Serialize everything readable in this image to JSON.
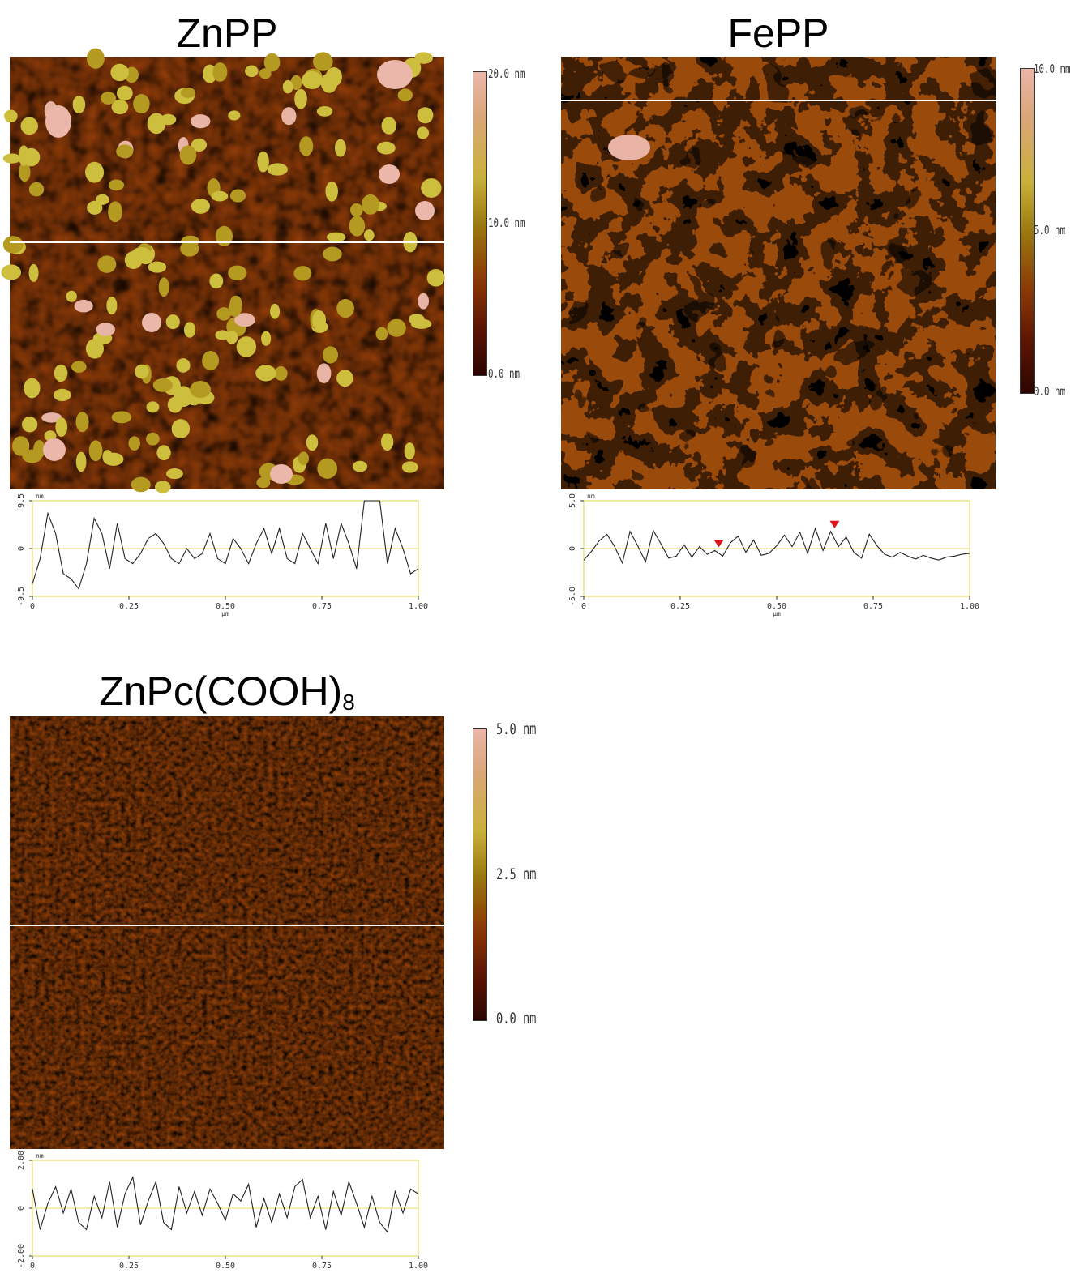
{
  "panels": [
    {
      "title": "ZnPP",
      "scale": {
        "top": "20.0 nm",
        "mid": "10.0 nm",
        "bottom": "0.0 nm"
      },
      "profile": {
        "y_unit": "nm",
        "x_unit": "µm",
        "y_ticks": [
          "9.5",
          "0",
          "-9.5"
        ],
        "x_ticks": [
          "0",
          "0.25",
          "0.50",
          "0.75",
          "1.00"
        ],
        "show_x_unit": true
      },
      "chart_data": {
        "type": "line",
        "x": [
          0,
          0.02,
          0.04,
          0.06,
          0.08,
          0.1,
          0.12,
          0.14,
          0.16,
          0.18,
          0.2,
          0.22,
          0.24,
          0.26,
          0.28,
          0.3,
          0.32,
          0.34,
          0.36,
          0.38,
          0.4,
          0.42,
          0.44,
          0.46,
          0.48,
          0.5,
          0.52,
          0.54,
          0.56,
          0.58,
          0.6,
          0.62,
          0.64,
          0.66,
          0.68,
          0.7,
          0.72,
          0.74,
          0.76,
          0.78,
          0.8,
          0.82,
          0.84,
          0.86,
          0.88,
          0.9,
          0.92,
          0.94,
          0.96,
          0.98,
          1.0
        ],
        "y": [
          -7,
          -2,
          7,
          3,
          -5,
          -6,
          -8,
          -3,
          6,
          3,
          -4,
          5,
          -2,
          -3,
          -1,
          2,
          3,
          1,
          -2,
          -3,
          0,
          -2,
          -1,
          3,
          -2,
          -3,
          2,
          0,
          -3,
          1,
          4,
          -1,
          4,
          -2,
          -3,
          3,
          0,
          -3,
          5,
          -2,
          5,
          1,
          -4,
          9.5,
          9.5,
          9.5,
          -3,
          4,
          0,
          -5,
          -4
        ],
        "xlim": [
          0,
          1.0
        ],
        "ylim": [
          -9.5,
          9.5
        ],
        "ylabel": "nm",
        "xlabel": "µm"
      }
    },
    {
      "title": "FePP",
      "scale": {
        "top": "10.0 nm",
        "mid": "5.0 nm",
        "bottom": "0.0 nm"
      },
      "profile": {
        "y_unit": "nm",
        "x_unit": "µm",
        "y_ticks": [
          "5.0",
          "0",
          "-5.0"
        ],
        "x_ticks": [
          "0",
          "0.25",
          "0.50",
          "0.75",
          "1.00"
        ],
        "show_x_unit": true
      },
      "chart_data": {
        "type": "line",
        "x": [
          0,
          0.02,
          0.04,
          0.06,
          0.08,
          0.1,
          0.12,
          0.14,
          0.16,
          0.18,
          0.2,
          0.22,
          0.24,
          0.26,
          0.28,
          0.3,
          0.32,
          0.34,
          0.36,
          0.38,
          0.4,
          0.42,
          0.44,
          0.46,
          0.48,
          0.5,
          0.52,
          0.54,
          0.56,
          0.58,
          0.6,
          0.62,
          0.64,
          0.66,
          0.68,
          0.7,
          0.72,
          0.74,
          0.76,
          0.78,
          0.8,
          0.82,
          0.84,
          0.86,
          0.88,
          0.9,
          0.92,
          0.94,
          0.96,
          0.98,
          1.0
        ],
        "y": [
          -1.2,
          -0.3,
          0.8,
          1.5,
          0.2,
          -1.5,
          1.8,
          0.3,
          -1.4,
          1.9,
          0.5,
          -1.0,
          -0.8,
          0.4,
          -0.9,
          0.2,
          -0.6,
          -0.2,
          -0.8,
          0.6,
          1.3,
          -0.4,
          0.9,
          -0.7,
          -0.5,
          0.3,
          1.4,
          0.2,
          1.7,
          -0.5,
          2.1,
          -0.2,
          1.8,
          0.2,
          1.2,
          -0.4,
          -1.0,
          1.5,
          0.3,
          -0.6,
          -0.9,
          -0.4,
          -0.8,
          -1.1,
          -0.7,
          -1.0,
          -1.2,
          -0.9,
          -0.8,
          -0.6,
          -0.5
        ],
        "markers": [
          0.35,
          0.65
        ],
        "xlim": [
          0,
          1.0
        ],
        "ylim": [
          -5.0,
          5.0
        ],
        "ylabel": "nm",
        "xlabel": "µm"
      }
    },
    {
      "title": "ZnPc(COOH)",
      "title_sub": "8",
      "scale": {
        "top": "5.0 nm",
        "mid": "2.5 nm",
        "bottom": "0.0 nm"
      },
      "profile": {
        "y_unit": "nm",
        "x_unit": "",
        "y_ticks": [
          "2.00",
          "0",
          "-2.00"
        ],
        "x_ticks": [
          "0",
          "0.25",
          "0.50",
          "0.75",
          "1.00"
        ],
        "show_x_unit": false
      },
      "chart_data": {
        "type": "line",
        "x": [
          0,
          0.02,
          0.04,
          0.06,
          0.08,
          0.1,
          0.12,
          0.14,
          0.16,
          0.18,
          0.2,
          0.22,
          0.24,
          0.26,
          0.28,
          0.3,
          0.32,
          0.34,
          0.36,
          0.38,
          0.4,
          0.42,
          0.44,
          0.46,
          0.48,
          0.5,
          0.52,
          0.54,
          0.56,
          0.58,
          0.6,
          0.62,
          0.64,
          0.66,
          0.68,
          0.7,
          0.72,
          0.74,
          0.76,
          0.78,
          0.8,
          0.82,
          0.84,
          0.86,
          0.88,
          0.9,
          0.92,
          0.94,
          0.96,
          0.98,
          1.0
        ],
        "y": [
          0.8,
          -0.9,
          0.2,
          0.9,
          -0.2,
          0.8,
          -0.6,
          -0.9,
          0.5,
          -0.4,
          1.1,
          -0.8,
          0.6,
          1.3,
          -0.7,
          0.3,
          1.1,
          -0.6,
          -0.9,
          0.9,
          -0.2,
          0.7,
          -0.3,
          0.8,
          0.2,
          -0.5,
          0.6,
          0.3,
          1.0,
          -0.8,
          0.4,
          -0.6,
          0.6,
          -0.4,
          0.9,
          1.2,
          -0.4,
          0.5,
          -0.9,
          0.7,
          -0.3,
          1.1,
          0.2,
          -0.8,
          0.5,
          -0.6,
          -1.0,
          0.7,
          -0.2,
          0.8,
          0.6
        ],
        "xlim": [
          0,
          1.0
        ],
        "ylim": [
          -2.0,
          2.0
        ],
        "ylabel": "nm",
        "xlabel": ""
      }
    }
  ]
}
